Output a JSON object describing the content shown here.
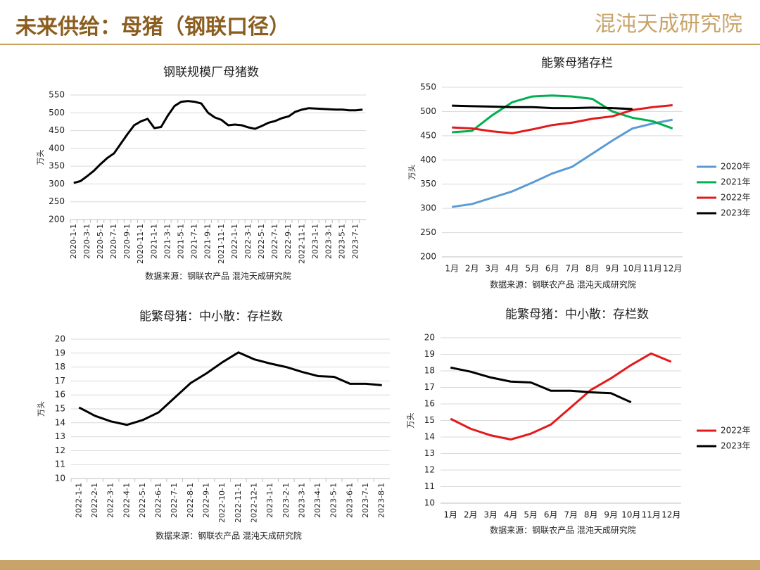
{
  "header": {
    "title": "未来供给：母猪（钢联口径）",
    "logo": "混沌天成研究院"
  },
  "chart_data": [
    {
      "type": "line",
      "title": "钢联规模厂母猪数",
      "y_label": "万头",
      "source": "数据来源：钢联农产品 混沌天成研究院",
      "categories": [
        "2020-1-1",
        null,
        "2020-3-1",
        null,
        "2020-5-1",
        null,
        "2020-7-1",
        null,
        "2020-9-1",
        null,
        "2020-11-1",
        null,
        "2021-1-1",
        null,
        "2021-3-1",
        null,
        "2021-5-1",
        null,
        "2021-7-1",
        null,
        "2021-9-1",
        null,
        "2021-11-1",
        null,
        "2022-1-1",
        null,
        "2022-3-1",
        null,
        "2022-5-1",
        null,
        "2022-7-1",
        null,
        "2022-9-1",
        null,
        "2022-11-1",
        null,
        "2023-1-1",
        null,
        "2023-3-1",
        null,
        "2023-5-1",
        null,
        "2023-7-1",
        null
      ],
      "values": [
        303,
        308,
        322,
        337,
        356,
        373,
        386,
        413,
        440,
        465,
        476,
        483,
        457,
        460,
        492,
        519,
        531,
        533,
        531,
        526,
        500,
        487,
        480,
        465,
        467,
        465,
        459,
        455,
        463,
        472,
        477,
        485,
        490,
        503,
        509,
        513,
        512,
        511,
        510,
        509,
        509,
        507,
        507,
        509
      ],
      "color": "#000000",
      "ylim": [
        200,
        550
      ],
      "yticks": [
        200,
        250,
        300,
        350,
        400,
        450,
        500,
        550
      ],
      "grid": true
    },
    {
      "type": "line",
      "title": "能繁母猪存栏",
      "y_label": "万头",
      "source": "数据来源：钢联农产品 混沌天成研究院",
      "categories": [
        "1月",
        "2月",
        "3月",
        "4月",
        "5月",
        "6月",
        "7月",
        "8月",
        "9月",
        "10月",
        "11月",
        "12月"
      ],
      "series": [
        {
          "name": "2020年",
          "color": "#5b9bd5",
          "values": [
            303,
            309,
            322,
            335,
            353,
            372,
            386,
            413,
            440,
            465,
            475,
            483
          ]
        },
        {
          "name": "2021年",
          "color": "#00b050",
          "values": [
            457,
            460,
            492,
            519,
            531,
            533,
            531,
            526,
            500,
            487,
            480,
            465
          ]
        },
        {
          "name": "2022年",
          "color": "#e31a1c",
          "values": [
            467,
            465,
            459,
            455,
            463,
            472,
            477,
            485,
            490,
            503,
            509,
            513
          ]
        },
        {
          "name": "2023年",
          "color": "#000000",
          "values": [
            512,
            511,
            510,
            509,
            509,
            507,
            507,
            508,
            507,
            505,
            null,
            null
          ]
        }
      ],
      "ylim": [
        200,
        550
      ],
      "yticks": [
        200,
        250,
        300,
        350,
        400,
        450,
        500,
        550
      ],
      "grid": true,
      "legend": "right"
    },
    {
      "type": "line",
      "title": "能繁母猪：中小散：存栏数",
      "y_label": "万头",
      "source": "数据来源：钢联农产品 混沌天成研究院",
      "categories": [
        "2022-1-1",
        "2022-2-1",
        "2022-3-1",
        "2022-4-1",
        "2022-5-1",
        "2022-6-1",
        "2022-7-1",
        "2022-8-1",
        "2022-9-1",
        "2022-10-1",
        "2022-11-1",
        "2022-12-1",
        "2023-1-1",
        "2023-2-1",
        "2023-3-1",
        "2023-4-1",
        "2023-5-1",
        "2023-6-1",
        "2023-7-1",
        "2023-8-1"
      ],
      "values": [
        15.1,
        14.5,
        14.1,
        13.85,
        14.2,
        14.75,
        15.8,
        16.85,
        17.55,
        18.35,
        19.05,
        18.55,
        18.25,
        18.0,
        17.65,
        17.35,
        17.3,
        16.8,
        16.8,
        16.7
      ],
      "color": "#000000",
      "ylim": [
        10,
        20
      ],
      "yticks": [
        10,
        11,
        12,
        13,
        14,
        15,
        16,
        17,
        18,
        19,
        20
      ],
      "grid": true
    },
    {
      "type": "line",
      "title": "能繁母猪：中小散：存栏数",
      "y_label": "万头",
      "source": "数据来源：钢联农产品 混沌天成研究院",
      "categories": [
        "1月",
        "2月",
        "3月",
        "4月",
        "5月",
        "6月",
        "7月",
        "8月",
        "9月",
        "10月",
        "11月",
        "12月"
      ],
      "series": [
        {
          "name": "2022年",
          "color": "#e31a1c",
          "values": [
            15.1,
            14.5,
            14.1,
            13.85,
            14.2,
            14.75,
            15.8,
            16.85,
            17.55,
            18.35,
            19.05,
            18.55
          ]
        },
        {
          "name": "2023年",
          "color": "#000000",
          "values": [
            18.2,
            17.95,
            17.6,
            17.35,
            17.3,
            16.8,
            16.8,
            16.7,
            16.65,
            16.1,
            null,
            null
          ]
        }
      ],
      "ylim": [
        10,
        20
      ],
      "yticks": [
        10,
        11,
        12,
        13,
        14,
        15,
        16,
        17,
        18,
        19,
        20
      ],
      "grid": true,
      "legend": "right"
    }
  ]
}
